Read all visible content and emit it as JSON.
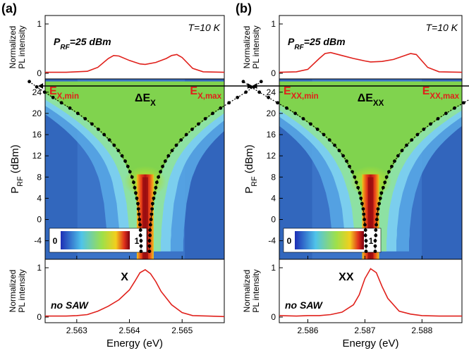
{
  "chart_data": [
    {
      "panel_label": "(a)",
      "type": "heatmap",
      "x_ticks": [
        "2.563",
        "2.564",
        "2.565"
      ],
      "x_range": [
        2.5624,
        2.5658
      ],
      "xlabel": "Energy (eV)",
      "top_ylabel": [
        "Normalized",
        "PL intensity"
      ],
      "top_yticks": [
        "0",
        "1"
      ],
      "top_text_power": {
        "main": "P",
        "sub": "RF",
        "rest": "=25 dBm"
      },
      "temperature": "T=10 K",
      "bottom_ylabel": [
        "Normalized",
        "PL intensity"
      ],
      "bottom_yticks": [
        "0",
        "1"
      ],
      "bottom_peak_label": "X",
      "bottom_note": "no SAW",
      "map_ylabel": {
        "main": "P",
        "sub": "RF",
        "rest": " (dBm)"
      },
      "map_yticks": [
        "-4",
        "0",
        "4",
        "8",
        "12",
        "16",
        "20",
        "24"
      ],
      "map_yrange": [
        -7.5,
        26.5
      ],
      "colorbar": {
        "min": "0",
        "max": "1"
      },
      "center_energy": 2.5643,
      "e_min_label": {
        "main": "E",
        "sub": "X,min"
      },
      "e_max_label": {
        "main": "E",
        "sub": "X,max"
      },
      "delta_label": {
        "main": "ΔE",
        "sub": "X"
      },
      "envelope": {
        "power_dbm": [
          -6,
          -5,
          -4,
          -3,
          -2,
          -1,
          0,
          1,
          2,
          3,
          4,
          5,
          6,
          7,
          8,
          9,
          10,
          11,
          12,
          13,
          14,
          15,
          16,
          17,
          18,
          19,
          20,
          21,
          22,
          23,
          24,
          25,
          26
        ],
        "e_min": [
          2.56422,
          2.56422,
          2.56422,
          2.56421,
          2.56421,
          2.5642,
          2.56419,
          2.56418,
          2.56417,
          2.56416,
          2.56414,
          2.56412,
          2.5641,
          2.56408,
          2.56405,
          2.56401,
          2.56397,
          2.56392,
          2.56386,
          2.56379,
          2.56371,
          2.56362,
          2.56352,
          2.56341,
          2.56329,
          2.56316,
          2.56302,
          2.56287,
          2.56271,
          2.56255,
          2.56239,
          2.56224,
          2.5621
        ],
        "e_max": [
          2.56438,
          2.56438,
          2.56438,
          2.56439,
          2.56439,
          2.5644,
          2.56441,
          2.56442,
          2.56443,
          2.56444,
          2.56446,
          2.56448,
          2.5645,
          2.56452,
          2.56455,
          2.56459,
          2.56463,
          2.56468,
          2.56474,
          2.56481,
          2.56489,
          2.56498,
          2.56508,
          2.56519,
          2.56531,
          2.56544,
          2.56558,
          2.56573,
          2.56589,
          2.56605,
          2.56621,
          2.56636,
          2.5665
        ]
      },
      "top_spectrum": {
        "x": [
          2.5624,
          2.5628,
          2.5632,
          2.5634,
          2.5636,
          2.5637,
          2.5638,
          2.564,
          2.5642,
          2.5643,
          2.5645,
          2.5647,
          2.5648,
          2.5649,
          2.565,
          2.5652,
          2.5654,
          2.5658
        ],
        "y": [
          0.02,
          0.02,
          0.04,
          0.12,
          0.3,
          0.36,
          0.35,
          0.26,
          0.19,
          0.18,
          0.22,
          0.3,
          0.36,
          0.38,
          0.32,
          0.1,
          0.03,
          0.02
        ]
      },
      "bottom_spectrum": {
        "x": [
          2.5624,
          2.5628,
          2.563,
          2.5632,
          2.5634,
          2.5636,
          2.5638,
          2.564,
          2.5641,
          2.5642,
          2.5643,
          2.5644,
          2.5645,
          2.5646,
          2.5648,
          2.565,
          2.5652,
          2.5655,
          2.5658
        ],
        "y": [
          0.02,
          0.02,
          0.03,
          0.05,
          0.12,
          0.22,
          0.35,
          0.55,
          0.72,
          0.9,
          0.96,
          0.88,
          0.72,
          0.52,
          0.25,
          0.09,
          0.03,
          0.02,
          0.01
        ]
      }
    },
    {
      "panel_label": "(b)",
      "type": "heatmap",
      "x_ticks": [
        "2.586",
        "2.587",
        "2.588"
      ],
      "x_range": [
        2.5855,
        2.5887
      ],
      "xlabel": "Energy (eV)",
      "top_ylabel": [
        "Normalized",
        "PL intensity"
      ],
      "top_yticks": [
        "0",
        "1"
      ],
      "top_text_power": {
        "main": "P",
        "sub": "RF",
        "rest": "=25 dBm"
      },
      "temperature": "T=10 K",
      "bottom_ylabel": [
        "Normalized",
        "PL intensity"
      ],
      "bottom_yticks": [
        "0",
        "1"
      ],
      "bottom_peak_label": "XX",
      "bottom_note": "no SAW",
      "map_ylabel": {
        "main": "P",
        "sub": "RF",
        "rest": " (dBm)"
      },
      "map_yticks": [
        "-4",
        "0",
        "4",
        "8",
        "12",
        "16",
        "20",
        "24"
      ],
      "map_yrange": [
        -7.5,
        26.5
      ],
      "colorbar": {
        "min": "0",
        "max": "1"
      },
      "center_energy": 2.5871,
      "e_min_label": {
        "main": "E",
        "sub": "XX,min"
      },
      "e_max_label": {
        "main": "E",
        "sub": "XX,max"
      },
      "delta_label": {
        "main": "ΔE",
        "sub": "XX"
      },
      "envelope": {
        "power_dbm": [
          -6,
          -5,
          -4,
          -3,
          -2,
          -1,
          0,
          1,
          2,
          3,
          4,
          5,
          6,
          7,
          8,
          9,
          10,
          11,
          12,
          13,
          14,
          15,
          16,
          17,
          18,
          19,
          20,
          21,
          22,
          23,
          24,
          25,
          26
        ],
        "e_min": [
          2.58702,
          2.58702,
          2.58702,
          2.58701,
          2.58701,
          2.587,
          2.58699,
          2.58698,
          2.58697,
          2.58695,
          2.58693,
          2.58691,
          2.58688,
          2.58685,
          2.58682,
          2.58678,
          2.58673,
          2.58668,
          2.58662,
          2.58655,
          2.58647,
          2.58638,
          2.58628,
          2.58617,
          2.58605,
          2.58592,
          2.58578,
          2.58563,
          2.58547,
          2.58531,
          2.58515,
          2.585,
          2.58487
        ],
        "e_max": [
          2.58718,
          2.58718,
          2.58718,
          2.58719,
          2.58719,
          2.5872,
          2.58721,
          2.58722,
          2.58723,
          2.58725,
          2.58727,
          2.58729,
          2.58732,
          2.58735,
          2.58738,
          2.58742,
          2.58747,
          2.58752,
          2.58758,
          2.58765,
          2.58773,
          2.58782,
          2.58792,
          2.58803,
          2.58815,
          2.58828,
          2.58842,
          2.58857,
          2.58873,
          2.58889,
          2.58905,
          2.5892,
          2.58933
        ]
      },
      "top_spectrum": {
        "x": [
          2.5855,
          2.5858,
          2.586,
          2.5862,
          2.5863,
          2.5864,
          2.5866,
          2.5868,
          2.587,
          2.5871,
          2.5873,
          2.5875,
          2.5877,
          2.5878,
          2.5879,
          2.5881,
          2.5883,
          2.5887
        ],
        "y": [
          0.02,
          0.03,
          0.08,
          0.3,
          0.4,
          0.42,
          0.36,
          0.3,
          0.25,
          0.23,
          0.24,
          0.28,
          0.36,
          0.4,
          0.38,
          0.12,
          0.03,
          0.02
        ]
      },
      "bottom_spectrum": {
        "x": [
          2.5855,
          2.5858,
          2.586,
          2.5862,
          2.5864,
          2.5866,
          2.5868,
          2.5869,
          2.587,
          2.5871,
          2.5872,
          2.5873,
          2.5874,
          2.5876,
          2.5878,
          2.588,
          2.5883,
          2.5887
        ],
        "y": [
          0.03,
          0.02,
          0.03,
          0.03,
          0.05,
          0.1,
          0.25,
          0.45,
          0.78,
          0.98,
          0.9,
          0.62,
          0.38,
          0.12,
          0.06,
          0.03,
          0.02,
          0.02
        ]
      }
    }
  ]
}
